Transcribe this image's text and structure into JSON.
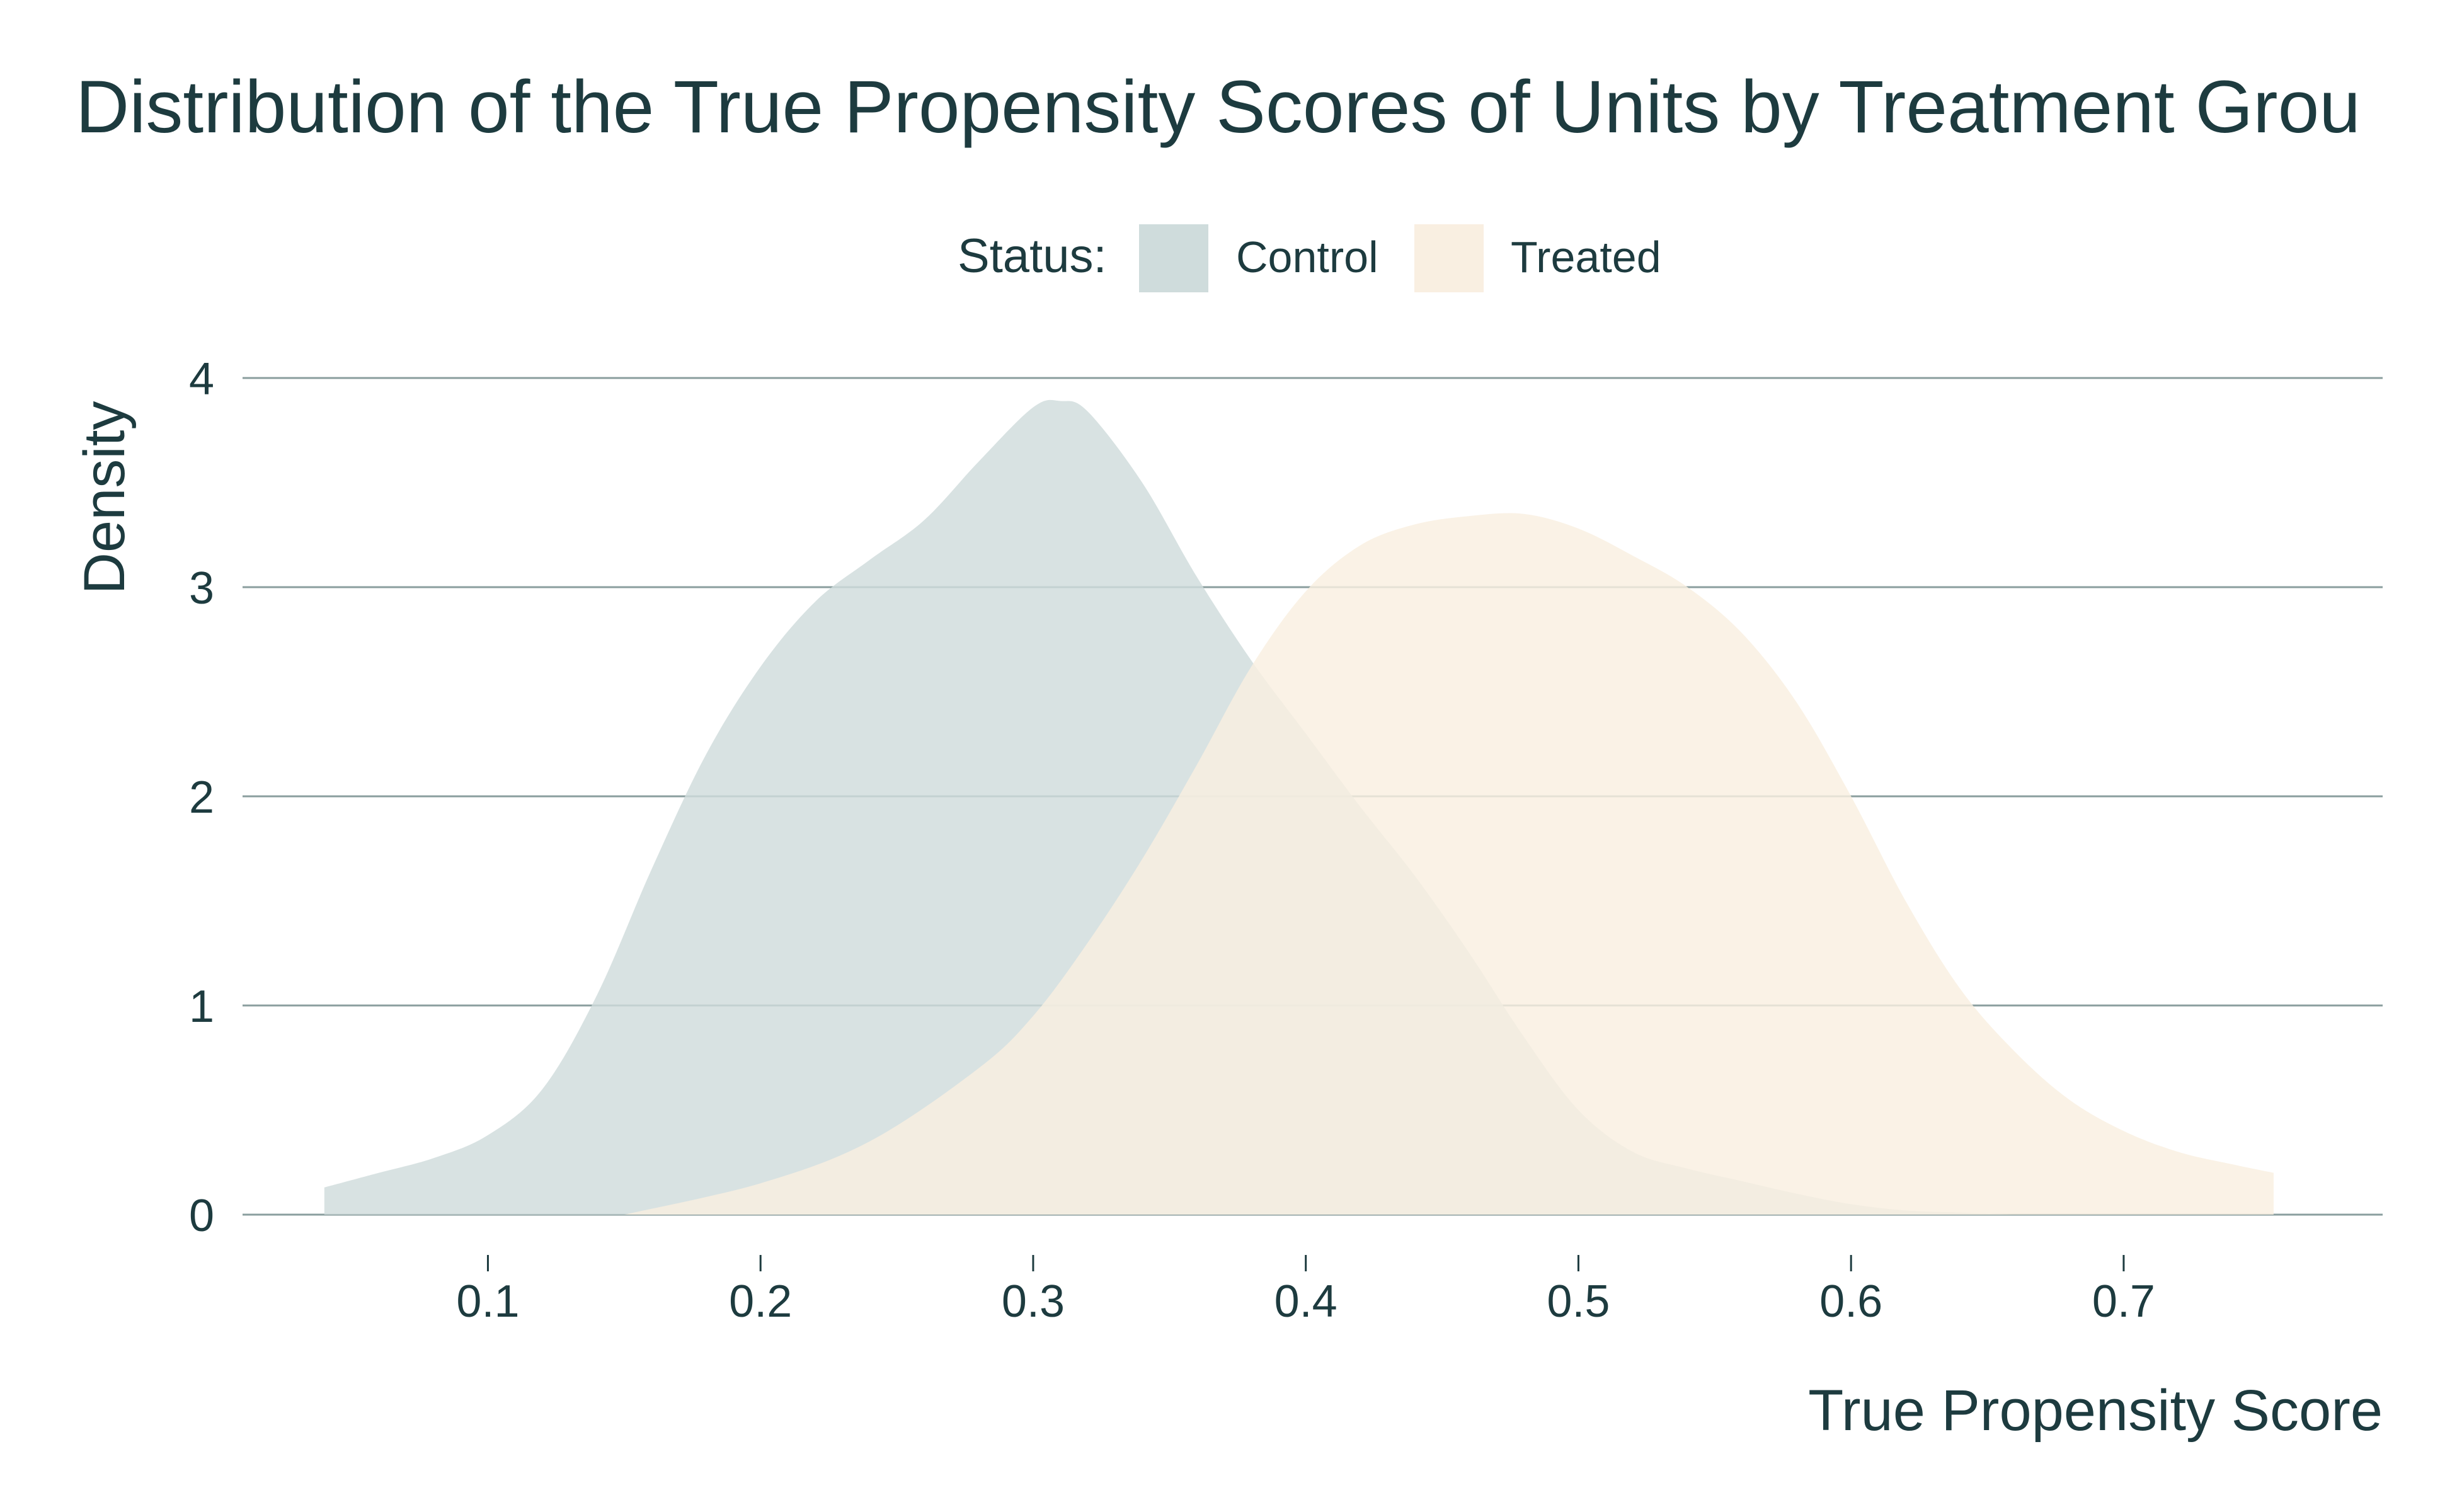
{
  "chart_data": {
    "type": "area",
    "title": "Distribution of the True Propensity Scores of Units by Treatment Grou",
    "xlabel": "True Propensity Score",
    "ylabel": "Density",
    "xlim": [
      0.01,
      0.795
    ],
    "ylim": [
      0,
      4
    ],
    "x_ticks": [
      "0.1",
      "0.2",
      "0.3",
      "0.4",
      "0.5",
      "0.6",
      "0.7"
    ],
    "y_ticks": [
      "0",
      "1",
      "2",
      "3",
      "4"
    ],
    "grid": "horizontal",
    "legend": {
      "title": "Status:",
      "placement": "top-center",
      "entries": [
        "Control",
        "Treated"
      ]
    },
    "series": [
      {
        "name": "Control",
        "color": "#cfdcdc",
        "x": [
          0.04,
          0.06,
          0.08,
          0.1,
          0.12,
          0.14,
          0.16,
          0.18,
          0.2,
          0.22,
          0.24,
          0.26,
          0.28,
          0.3,
          0.31,
          0.32,
          0.34,
          0.36,
          0.38,
          0.4,
          0.42,
          0.44,
          0.46,
          0.48,
          0.5,
          0.52,
          0.54,
          0.56,
          0.58,
          0.6,
          0.62,
          0.64,
          0.66
        ],
        "values": [
          0.13,
          0.2,
          0.27,
          0.38,
          0.6,
          1.05,
          1.65,
          2.2,
          2.62,
          2.93,
          3.13,
          3.32,
          3.6,
          3.86,
          3.89,
          3.84,
          3.5,
          3.05,
          2.65,
          2.3,
          1.95,
          1.62,
          1.25,
          0.85,
          0.5,
          0.3,
          0.22,
          0.16,
          0.1,
          0.05,
          0.02,
          0.01,
          0.0
        ]
      },
      {
        "name": "Treated",
        "color": "#f9efe1",
        "x": [
          0.15,
          0.2,
          0.24,
          0.28,
          0.3,
          0.32,
          0.34,
          0.36,
          0.38,
          0.4,
          0.42,
          0.44,
          0.46,
          0.48,
          0.5,
          0.52,
          0.54,
          0.56,
          0.58,
          0.6,
          0.62,
          0.64,
          0.66,
          0.68,
          0.7,
          0.72,
          0.74,
          0.755
        ],
        "values": [
          0.0,
          0.15,
          0.35,
          0.7,
          0.95,
          1.3,
          1.7,
          2.15,
          2.62,
          2.98,
          3.2,
          3.3,
          3.34,
          3.35,
          3.28,
          3.15,
          3.0,
          2.78,
          2.45,
          2.0,
          1.5,
          1.08,
          0.78,
          0.55,
          0.4,
          0.3,
          0.24,
          0.2
        ]
      }
    ]
  }
}
